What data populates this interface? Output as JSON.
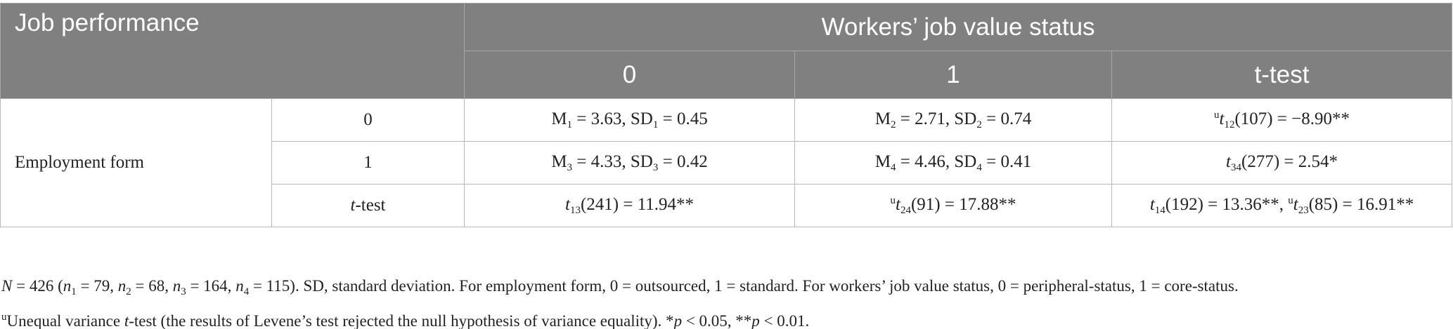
{
  "table": {
    "header": {
      "title": "Job performance",
      "group": "Workers’ job value status",
      "columns": [
        "0",
        "1",
        "t-test"
      ]
    },
    "row_group": "Employment form",
    "rows": [
      {
        "label": "0",
        "cells": [
          [
            "M",
            {
              "sub": "1"
            },
            " = 3.63, SD",
            {
              "sub": "1"
            },
            " = 0.45"
          ],
          [
            "M",
            {
              "sub": "2"
            },
            " = 2.71, SD",
            {
              "sub": "2"
            },
            " = 0.74"
          ],
          [
            {
              "sup": "u"
            },
            {
              "i": "t"
            },
            {
              "sub": "12"
            },
            "(107) = −8.90**"
          ]
        ]
      },
      {
        "label": "1",
        "cells": [
          [
            "M",
            {
              "sub": "3"
            },
            " = 4.33, SD",
            {
              "sub": "3"
            },
            " = 0.42"
          ],
          [
            "M",
            {
              "sub": "4"
            },
            " = 4.46, SD",
            {
              "sub": "4"
            },
            " = 0.41"
          ],
          [
            {
              "i": "t"
            },
            {
              "sub": "34"
            },
            "(277) = 2.54*"
          ]
        ]
      },
      {
        "label": [
          {
            "i": "t"
          },
          "-test"
        ],
        "cells": [
          [
            {
              "i": "t"
            },
            {
              "sub": "13"
            },
            "(241) = 11.94**"
          ],
          [
            {
              "sup": "u"
            },
            {
              "i": "t"
            },
            {
              "sub": "24"
            },
            "(91) = 17.88**"
          ],
          [
            {
              "i": "t"
            },
            {
              "sub": "14"
            },
            "(192) = 13.36**, ",
            {
              "sup": "u"
            },
            {
              "i": "t"
            },
            {
              "sub": "23"
            },
            "(85) = 16.91**"
          ]
        ]
      }
    ]
  },
  "notes": [
    [
      {
        "i": "N"
      },
      " = 426 (",
      {
        "i": "n"
      },
      {
        "sub": "1"
      },
      " = 79, ",
      {
        "i": "n"
      },
      {
        "sub": "2"
      },
      " = 68, ",
      {
        "i": "n"
      },
      {
        "sub": "3"
      },
      " = 164, ",
      {
        "i": "n"
      },
      {
        "sub": "4"
      },
      " = 115). SD, standard deviation. For employment form, 0 = outsourced, 1 = standard. For workers’ job value status, 0 = peripheral-status, 1 = core-status."
    ],
    [
      {
        "sup": "u"
      },
      "Unequal variance ",
      {
        "i": "t"
      },
      "-test (the results of Levene’s test rejected the null hypothesis of variance equality). *",
      {
        "i": "p"
      },
      " < 0.05, **",
      {
        "i": "p"
      },
      " < 0.01."
    ]
  ]
}
